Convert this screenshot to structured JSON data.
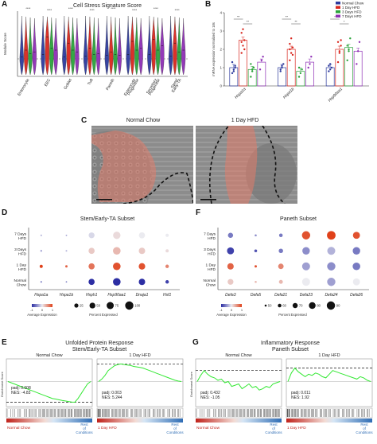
{
  "panels": {
    "A": {
      "letter": "A",
      "title": "Cell Stress Signature Score",
      "ylabel": "Module Score",
      "categories": [
        "Enterocyte",
        "EEC",
        "Goblet",
        "Tuft",
        "Paneth",
        "Enterocyte Progenitor",
        "Secretory Progenitor",
        "Stem/ Early-TA"
      ],
      "category_lines": [
        [
          "Enterocyte"
        ],
        [
          "EEC"
        ],
        [
          "Goblet"
        ],
        [
          "Tuft"
        ],
        [
          "Paneth"
        ],
        [
          "Enterocyte",
          "Progenitor"
        ],
        [
          "Secretory",
          "Progenitor"
        ],
        [
          "Stem/",
          "Early-TA"
        ]
      ]
    },
    "B": {
      "letter": "B",
      "ylabel": "mRNA expression normalized to 18s",
      "legend": [
        "Normal Chow",
        "1 Day HFD",
        "3 Days HFD",
        "7 Days HFD"
      ],
      "genes": [
        "Hspa1a",
        "Hspa1b",
        "Hsp90aa1"
      ],
      "sig_marks": [
        [
          "**",
          "**"
        ],
        [
          "**",
          "**"
        ],
        [
          "*",
          "*"
        ]
      ]
    },
    "C": {
      "letter": "C",
      "left_title": "Normal Chow",
      "right_title": "1 Day HFD"
    },
    "D": {
      "letter": "D",
      "title": "Stem/Early-TA Subset",
      "rows": [
        "7 Days HFD",
        "3 Days HFD",
        "1 Day HFD",
        "Normal Chow"
      ],
      "genes": [
        "Hspa1a",
        "Hspa1b",
        "Hsph1",
        "Hsp90aa1",
        "Dnaja1",
        "Hsf1"
      ],
      "avg_expr_label": "Average Expression",
      "avg_expr_ticks": [
        "-1",
        "0",
        "1"
      ],
      "pct_label": "Percent Expressed",
      "pct_ticks": [
        "25",
        "50",
        "75",
        "100"
      ]
    },
    "F": {
      "letter": "F",
      "title": "Paneth Subset",
      "rows": [
        "7 Days HFD",
        "3 Days HFD",
        "1 Day HFD",
        "Normal Chow"
      ],
      "genes": [
        "Defa3",
        "Defa5",
        "Defa21",
        "Defa23",
        "Defa24",
        "Defa26"
      ],
      "avg_expr_label": "Average Expression",
      "avg_expr_ticks": [
        "-1",
        "0",
        "1"
      ],
      "pct_label": "Percent Expressed",
      "pct_ticks": [
        "50",
        "60",
        "70",
        "80",
        "90"
      ]
    },
    "E": {
      "letter": "E",
      "title_line1": "Unfolded Protein Response",
      "title_line2": "Stem/Early-TA Subset",
      "left_title": "Normal Chow",
      "right_title": "1 Day HFD",
      "ylabel": "Enrichment Score",
      "left_stats": [
        "padj: 0.008",
        "NES: -4.83"
      ],
      "right_stats": [
        "padj: 0.003",
        "NES: 5.244"
      ],
      "left_bottom_left": "Normal Chow",
      "left_bottom_right": [
        "Rest",
        "of",
        "Conditions"
      ],
      "right_bottom_left": "1 Day HFD",
      "right_bottom_right": [
        "Rest",
        "of",
        "Conditions"
      ]
    },
    "G": {
      "letter": "G",
      "title_line1": "Inflammatory Response",
      "title_line2": "Paneth Subset",
      "left_title": "Normal Chow",
      "right_title": "1 Day HFD",
      "ylabel": "Enrichment Score",
      "left_stats": [
        "padj: 0.432",
        "NES: -1.05"
      ],
      "right_stats": [
        "padj: 0.011",
        "NES: 1.92"
      ],
      "left_bottom_left": "Normal Chow",
      "left_bottom_right": [
        "Rest",
        "of",
        "Conditions"
      ],
      "right_bottom_left": "1 Day HFD",
      "right_bottom_right": [
        "Rest",
        "of",
        "Conditions"
      ]
    }
  },
  "colors": {
    "normal_chow": "#2d3a9e",
    "day1": "#d9271e",
    "day3": "#2aa33a",
    "day7": "#8e2fb5",
    "blue_low": "#2c2ea3",
    "red_high": "#e0411a",
    "gsea_line": "#33e833",
    "tissue_overlay": "#e27c6a"
  },
  "chart_data": [
    {
      "type": "violin",
      "panel": "A",
      "title": "Cell Stress Signature Score",
      "ylabel": "Module Score",
      "categories": [
        "Enterocyte",
        "EEC",
        "Goblet",
        "Tuft",
        "Paneth",
        "Enterocyte Progenitor",
        "Secretory Progenitor",
        "Stem/ Early-TA"
      ],
      "series": [
        {
          "name": "Normal Chow",
          "values": [
            0.02,
            0.05,
            0.02,
            0.03,
            0.04,
            0.05,
            0.05,
            0.03
          ]
        },
        {
          "name": "1 Day HFD",
          "values": [
            0.1,
            0.25,
            0.18,
            0.12,
            0.08,
            0.2,
            0.22,
            0.18
          ]
        },
        {
          "name": "3 Days HFD",
          "values": [
            0.06,
            0.12,
            0.1,
            0.05,
            0.05,
            0.1,
            0.1,
            0.08
          ]
        },
        {
          "name": "7 Days HFD",
          "values": [
            0.08,
            0.1,
            0.08,
            0.06,
            0.04,
            0.12,
            0.15,
            0.1
          ]
        }
      ]
    },
    {
      "type": "bar",
      "panel": "B",
      "ylabel": "mRNA expression normalized to 18s",
      "categories": [
        "Hspa1a",
        "Hspa1b",
        "Hsp90aa1"
      ],
      "series": [
        {
          "name": "Normal Chow",
          "values": [
            1.0,
            1.0,
            1.0
          ]
        },
        {
          "name": "1 Day HFD",
          "values": [
            2.5,
            2.0,
            2.0
          ]
        },
        {
          "name": "3 Days HFD",
          "values": [
            0.9,
            0.8,
            2.1
          ]
        },
        {
          "name": "7 Days HFD",
          "values": [
            1.3,
            1.3,
            1.9
          ]
        }
      ],
      "points": [
        [
          [
            0.7,
            0.9,
            1.1,
            1.3,
            0.8,
            1.0
          ],
          [
            1.8,
            2.2,
            2.5,
            2.9,
            3.1,
            2.0,
            2.4
          ],
          [
            0.5,
            0.8,
            1.0,
            1.2,
            0.9
          ],
          [
            0.9,
            1.4,
            1.6
          ]
        ],
        [
          [
            0.8,
            1.0,
            1.2,
            0.9,
            1.1
          ],
          [
            1.4,
            1.8,
            2.1,
            2.3,
            2.6,
            1.7,
            2.0
          ],
          [
            0.5,
            0.7,
            0.9,
            1.0
          ],
          [
            1.0,
            1.2,
            1.6
          ]
        ],
        [
          [
            0.8,
            0.9,
            1.0,
            1.1,
            1.2
          ],
          [
            1.3,
            1.9,
            2.2,
            2.4,
            1.8,
            2.5
          ],
          [
            1.4,
            2.0,
            2.6,
            2.2,
            1.9
          ],
          [
            1.2,
            1.9,
            2.4
          ]
        ]
      ],
      "ylim": [
        0,
        4
      ]
    },
    {
      "type": "dotplot",
      "panel": "D",
      "title": "Stem/Early-TA Subset",
      "rows": [
        "7 Days HFD",
        "3 Days HFD",
        "1 Day HFD",
        "Normal Chow"
      ],
      "genes": [
        "Hspa1a",
        "Hspa1b",
        "Hsph1",
        "Hsp90aa1",
        "Dnaja1",
        "Hsf1"
      ],
      "avg_expression": [
        [
          -0.3,
          -0.4,
          -0.1,
          0.1,
          0.0,
          0.0
        ],
        [
          -0.4,
          -0.3,
          0.2,
          0.3,
          0.2,
          0.1
        ],
        [
          1.0,
          0.8,
          0.7,
          0.9,
          0.9,
          0.6
        ],
        [
          -0.6,
          -0.6,
          -1.0,
          -1.0,
          -1.0,
          -0.9
        ]
      ],
      "pct_expressed": [
        [
          4,
          3,
          50,
          80,
          55,
          15
        ],
        [
          5,
          4,
          55,
          85,
          60,
          15
        ],
        [
          14,
          8,
          55,
          85,
          62,
          18
        ],
        [
          4,
          3,
          55,
          85,
          60,
          18
        ]
      ]
    },
    {
      "type": "dotplot",
      "panel": "F",
      "title": "Paneth Subset",
      "rows": [
        "7 Days HFD",
        "3 Days HFD",
        "1 Day HFD",
        "Normal Chow"
      ],
      "genes": [
        "Defa3",
        "Defa5",
        "Defa21",
        "Defa23",
        "Defa24",
        "Defa26"
      ],
      "avg_expression": [
        [
          -0.6,
          -0.5,
          -0.6,
          0.9,
          1.0,
          0.9
        ],
        [
          -0.9,
          -0.8,
          -0.6,
          -0.5,
          -0.3,
          -0.6
        ],
        [
          0.8,
          0.9,
          0.6,
          -0.4,
          -0.5,
          -0.6
        ],
        [
          0.2,
          0.3,
          0.3,
          0.0,
          -0.4,
          0.0
        ]
      ],
      "pct_expressed": [
        [
          70,
          50,
          60,
          90,
          92,
          82
        ],
        [
          82,
          55,
          65,
          85,
          88,
          85
        ],
        [
          78,
          52,
          72,
          88,
          90,
          86
        ],
        [
          74,
          50,
          62,
          88,
          90,
          82
        ]
      ]
    },
    {
      "type": "line",
      "panel": "E",
      "series": [
        {
          "name": "Normal Chow",
          "values": [
            0.0,
            -0.05,
            -0.1,
            -0.15,
            -0.2,
            -0.25,
            -0.3,
            -0.35,
            -0.4,
            -0.45,
            -0.5,
            -0.55,
            -0.6,
            -0.65,
            -0.7,
            -0.72,
            -0.75,
            -0.78,
            -0.8,
            -0.82,
            -0.84,
            -0.85,
            -0.7,
            -0.5,
            -0.3,
            -0.1,
            0.0
          ]
        },
        {
          "name": "1 Day HFD",
          "values": [
            0.0,
            0.1,
            0.25,
            0.45,
            0.55,
            0.65,
            0.7,
            0.72,
            0.7,
            0.68,
            0.66,
            0.62,
            0.6,
            0.58,
            0.55,
            0.5,
            0.45,
            0.4,
            0.35,
            0.3,
            0.25,
            0.2,
            0.15,
            0.1,
            0.05,
            0.02,
            0.0
          ]
        }
      ]
    },
    {
      "type": "line",
      "panel": "G",
      "series": [
        {
          "name": "Normal Chow",
          "values": [
            0.0,
            0.25,
            0.45,
            0.3,
            0.2,
            0.15,
            0.05,
            0.1,
            -0.05,
            0.0,
            -0.2,
            -0.15,
            -0.1,
            -0.3,
            -0.2,
            -0.1,
            -0.25,
            -0.2,
            -0.35,
            -0.3,
            -0.2,
            -0.25,
            -0.1,
            -0.05,
            0.0
          ]
        },
        {
          "name": "1 Day HFD",
          "values": [
            0.0,
            0.35,
            0.55,
            0.4,
            0.3,
            0.2,
            0.3,
            0.25,
            0.35,
            0.3,
            0.2,
            0.15,
            0.3,
            0.45,
            0.4,
            0.35,
            0.3,
            0.25,
            0.2,
            0.15,
            0.1,
            0.2,
            0.15,
            0.05,
            0.0
          ]
        }
      ]
    }
  ]
}
